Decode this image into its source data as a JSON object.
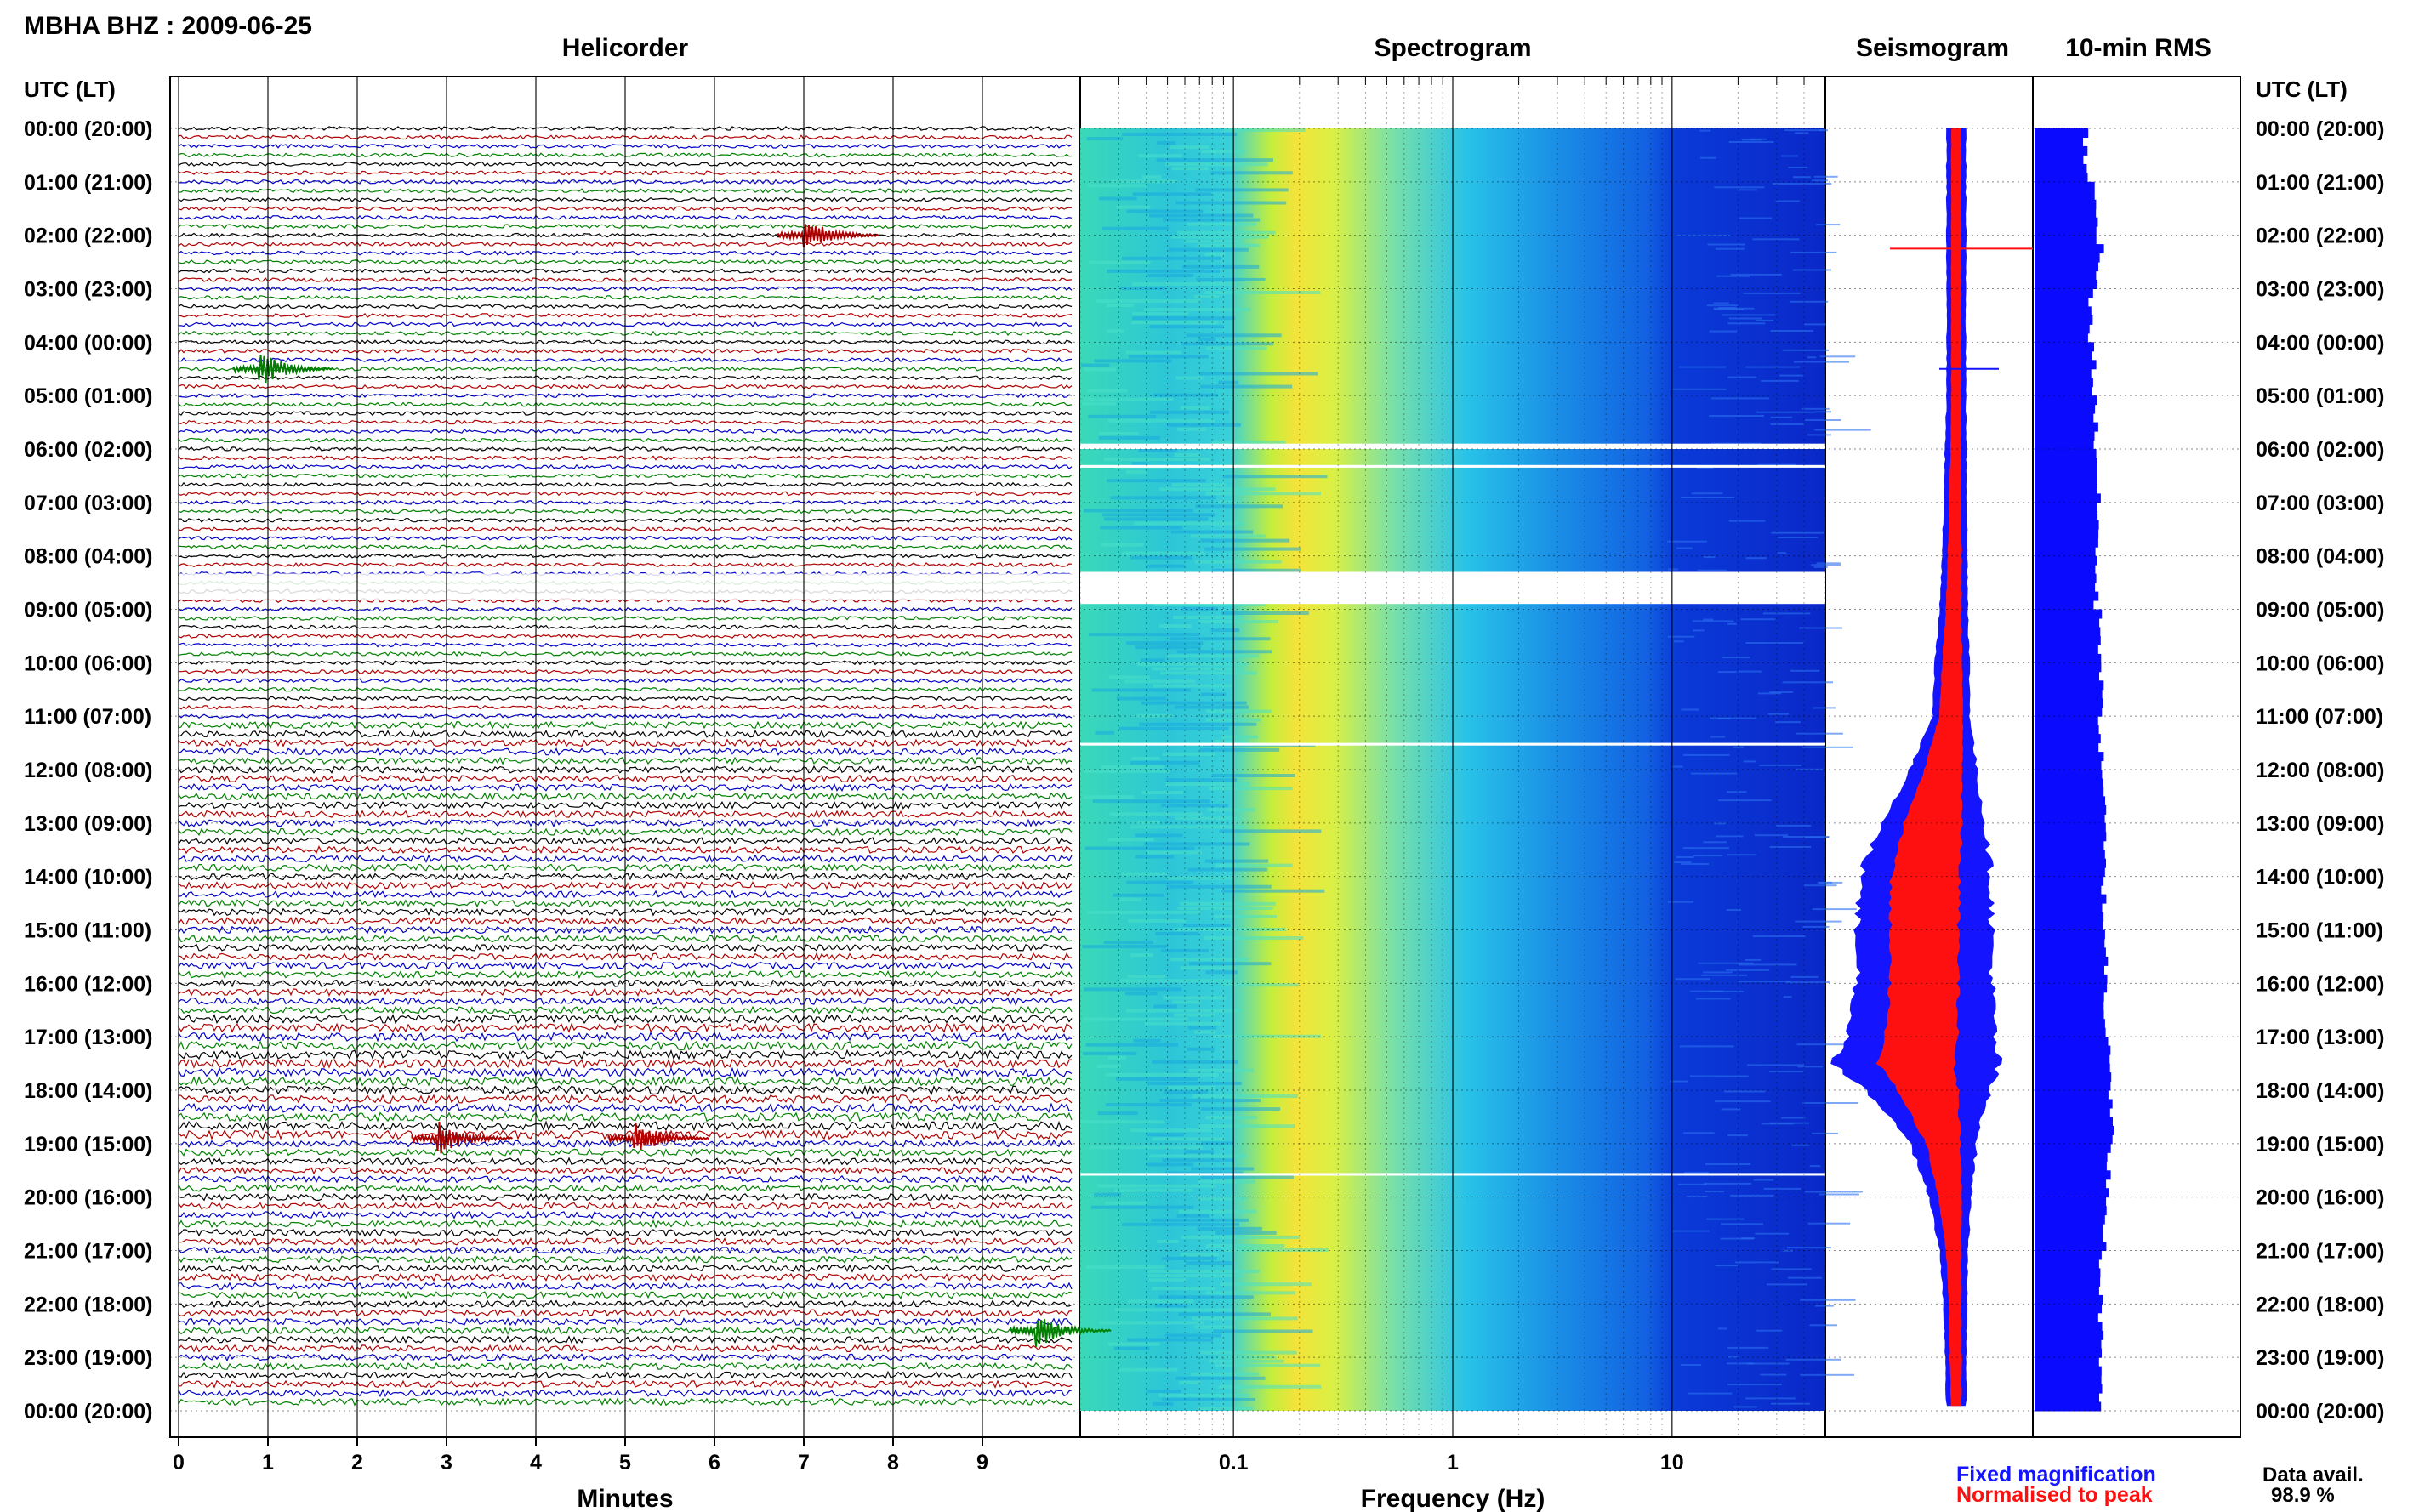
{
  "header": {
    "station": "MBHA BHZ : 2009-06-25",
    "left_axis_title": "UTC (LT)",
    "right_axis_title": "UTC (LT)"
  },
  "panels": {
    "helicorder": "Helicorder",
    "spectrogram": "Spectrogram",
    "seismogram": "Seismogram",
    "rms": "10-min RMS"
  },
  "xlabels": {
    "minutes": "Minutes",
    "frequency": "Frequency (Hz)"
  },
  "legend": {
    "fixed": "Fixed magnification",
    "normalised": "Normalised to peak",
    "fixed_color": "#1414ff",
    "normalised_color": "#ff1010"
  },
  "availability": {
    "label": "Data avail.",
    "value": "98.9 %"
  },
  "colors": {
    "trace_cycle": [
      "#000000",
      "#b00000",
      "#0000c8",
      "#008000"
    ],
    "rms_bar": "#0a0aff"
  },
  "chart_data": [
    {
      "type": "line",
      "panel": "helicorder",
      "xlabel": "Minutes",
      "xlim": [
        0,
        10
      ],
      "x_ticks": [
        "0",
        "1",
        "2",
        "3",
        "4",
        "5",
        "6",
        "7",
        "8",
        "9"
      ],
      "y_ticks_utc": [
        "00:00 (20:00)",
        "01:00 (21:00)",
        "02:00 (22:00)",
        "03:00 (23:00)",
        "04:00 (00:00)",
        "05:00 (01:00)",
        "06:00 (02:00)",
        "07:00 (03:00)",
        "08:00 (04:00)",
        "09:00 (05:00)",
        "10:00 (06:00)",
        "11:00 (07:00)",
        "12:00 (08:00)",
        "13:00 (09:00)",
        "14:00 (10:00)",
        "15:00 (11:00)",
        "16:00 (12:00)",
        "17:00 (13:00)",
        "18:00 (14:00)",
        "19:00 (15:00)",
        "20:00 (16:00)",
        "21:00 (17:00)",
        "22:00 (18:00)",
        "23:00 (19:00)",
        "00:00 (20:00)"
      ],
      "lines_per_hour": 6,
      "events": [
        {
          "hour": 2.0,
          "minute": 7.0,
          "color": "#b00000"
        },
        {
          "hour": 4.5,
          "minute": 0.9,
          "color": "#008000"
        },
        {
          "hour": 18.9,
          "minute": 2.9,
          "color": "#b00000"
        },
        {
          "hour": 18.9,
          "minute": 5.1,
          "color": "#b00000"
        },
        {
          "hour": 22.5,
          "minute": 9.6,
          "color": "#008000"
        }
      ],
      "gaps_hours": [
        [
          8.33,
          8.83
        ]
      ]
    },
    {
      "type": "heatmap",
      "panel": "spectrogram",
      "xlabel": "Frequency (Hz)",
      "xscale": "log",
      "xlim": [
        0.02,
        50
      ],
      "x_ticks": [
        "0.1",
        "1",
        "10"
      ],
      "peak_frequency_hz": 0.25,
      "gaps_hours": [
        [
          5.9,
          6.0
        ],
        [
          6.3,
          6.35
        ],
        [
          8.3,
          8.9
        ],
        [
          11.5,
          11.55
        ],
        [
          19.55,
          19.6
        ]
      ]
    },
    {
      "type": "area",
      "panel": "seismogram",
      "series": [
        {
          "name": "Fixed magnification",
          "y_hours": [
            0,
            1,
            2,
            3,
            4,
            5,
            6,
            7,
            8,
            9,
            10,
            11,
            12,
            13,
            14,
            15,
            16,
            17,
            17.5,
            18,
            19,
            20,
            21,
            22,
            23,
            24
          ],
          "half_width": [
            0.1,
            0.1,
            0.1,
            0.1,
            0.1,
            0.1,
            0.11,
            0.12,
            0.13,
            0.15,
            0.18,
            0.2,
            0.35,
            0.55,
            0.7,
            0.72,
            0.72,
            0.78,
            0.88,
            0.65,
            0.35,
            0.22,
            0.15,
            0.12,
            0.11,
            0.1
          ]
        },
        {
          "name": "Normalised to peak",
          "y_hours": [
            0,
            1,
            2,
            3,
            4,
            5,
            6,
            7,
            8,
            9,
            10,
            11,
            12,
            13,
            14,
            15,
            16,
            17,
            17.5,
            18,
            19,
            20,
            21,
            22,
            23,
            24
          ],
          "half_width": [
            0.05,
            0.05,
            0.05,
            0.05,
            0.05,
            0.05,
            0.05,
            0.06,
            0.07,
            0.08,
            0.1,
            0.12,
            0.2,
            0.3,
            0.36,
            0.36,
            0.36,
            0.38,
            0.4,
            0.32,
            0.18,
            0.12,
            0.08,
            0.06,
            0.06,
            0.05
          ]
        }
      ]
    },
    {
      "type": "bar",
      "panel": "rms",
      "orientation": "horizontal",
      "interval_minutes": 10,
      "values_by_hour": [
        0.5,
        0.6,
        0.62,
        0.55,
        0.58,
        0.6,
        0.62,
        0.62,
        0.6,
        0.65,
        0.65,
        0.65,
        0.68,
        0.68,
        0.68,
        0.7,
        0.7,
        0.75,
        0.75,
        0.73,
        0.68,
        0.65,
        0.65,
        0.66
      ],
      "spike_hour": 2.2,
      "spike_value": 0.68
    }
  ]
}
